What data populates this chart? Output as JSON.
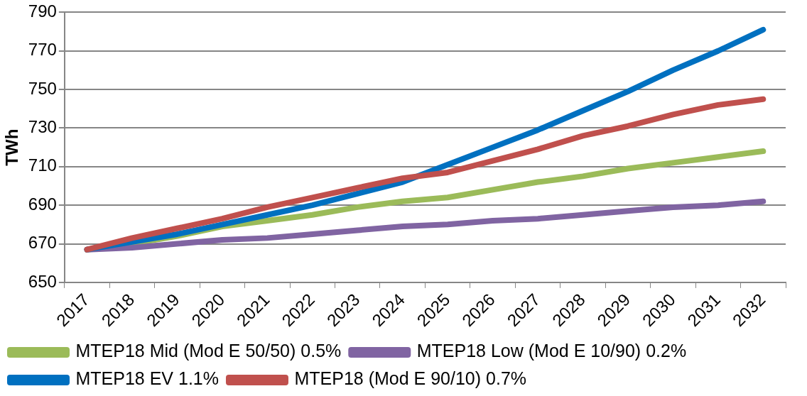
{
  "chart_data": {
    "type": "line",
    "ylabel": "TWh",
    "categories": [
      "2017",
      "2018",
      "2019",
      "2020",
      "2021",
      "2022",
      "2023",
      "2024",
      "2025",
      "2026",
      "2027",
      "2028",
      "2029",
      "2030",
      "2031",
      "2032"
    ],
    "series": [
      {
        "name": "MTEP18 Mid (Mod E 50/50) 0.5%",
        "color": "#9bbb59",
        "values": [
          667,
          670,
          674,
          679,
          682,
          685,
          689,
          692,
          694,
          698,
          702,
          705,
          709,
          712,
          715,
          718
        ]
      },
      {
        "name": "MTEP18 Low (Mod E 10/90) 0.2%",
        "color": "#8064a2",
        "values": [
          667,
          668,
          670,
          672,
          673,
          675,
          677,
          679,
          680,
          682,
          683,
          685,
          687,
          689,
          690,
          692
        ]
      },
      {
        "name": "MTEP18 EV 1.1%",
        "color": "#0070c0",
        "values": [
          667,
          671,
          675,
          680,
          685,
          690,
          696,
          702,
          711,
          720,
          729,
          739,
          749,
          760,
          770,
          781
        ]
      },
      {
        "name": "MTEP18 (Mod E 90/10) 0.7%",
        "color": "#c0504d",
        "values": [
          667,
          673,
          678,
          683,
          689,
          694,
          699,
          704,
          707,
          713,
          719,
          726,
          731,
          737,
          742,
          745
        ]
      }
    ],
    "ylim": [
      650,
      790
    ],
    "yticks": [
      650,
      670,
      690,
      710,
      730,
      750,
      770,
      790
    ],
    "grid": "y",
    "legend": "bottom",
    "marker": "none",
    "line_style": "solid"
  }
}
